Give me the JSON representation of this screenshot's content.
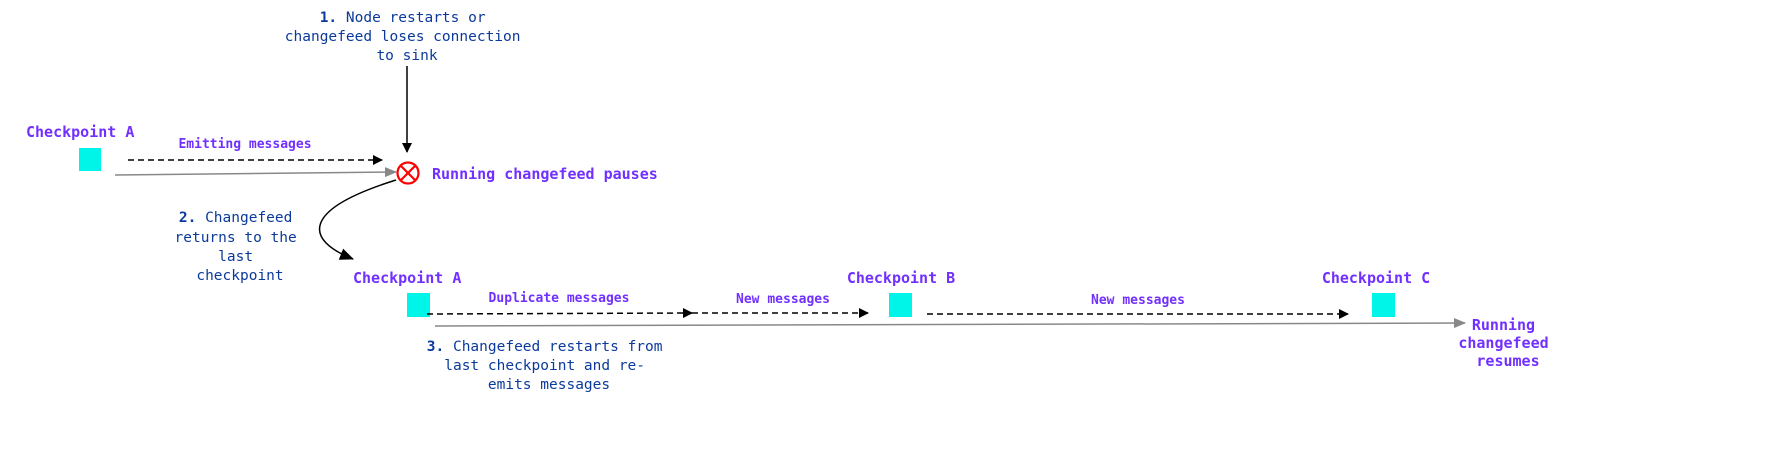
{
  "colors": {
    "checkpoint": "#00f5e9",
    "label": "#7130ff",
    "note": "#0b3a9c",
    "pause": "#ff0000"
  },
  "step1": {
    "num": "1.",
    "lines": [
      "Node restarts or",
      "changefeed loses connection",
      "to sink"
    ]
  },
  "step2": {
    "num": "2.",
    "lines": [
      "Changefeed",
      "returns to the",
      "last",
      "checkpoint"
    ]
  },
  "step3": {
    "num": "3.",
    "lines": [
      "Changefeed restarts from",
      "last checkpoint and re-",
      "emits messages"
    ]
  },
  "top_row": {
    "checkpoint": "Checkpoint A",
    "emitting": "Emitting messages",
    "pause_label": "Running changefeed pauses",
    "pause_icon": "circle-x-icon"
  },
  "bottom_row": {
    "checkpoints": [
      "Checkpoint A",
      "Checkpoint B",
      "Checkpoint C"
    ],
    "duplicate": "Duplicate messages",
    "new1": "New messages",
    "new2": "New messages",
    "resume_lines": [
      "Running",
      "changefeed",
      "resumes"
    ]
  }
}
